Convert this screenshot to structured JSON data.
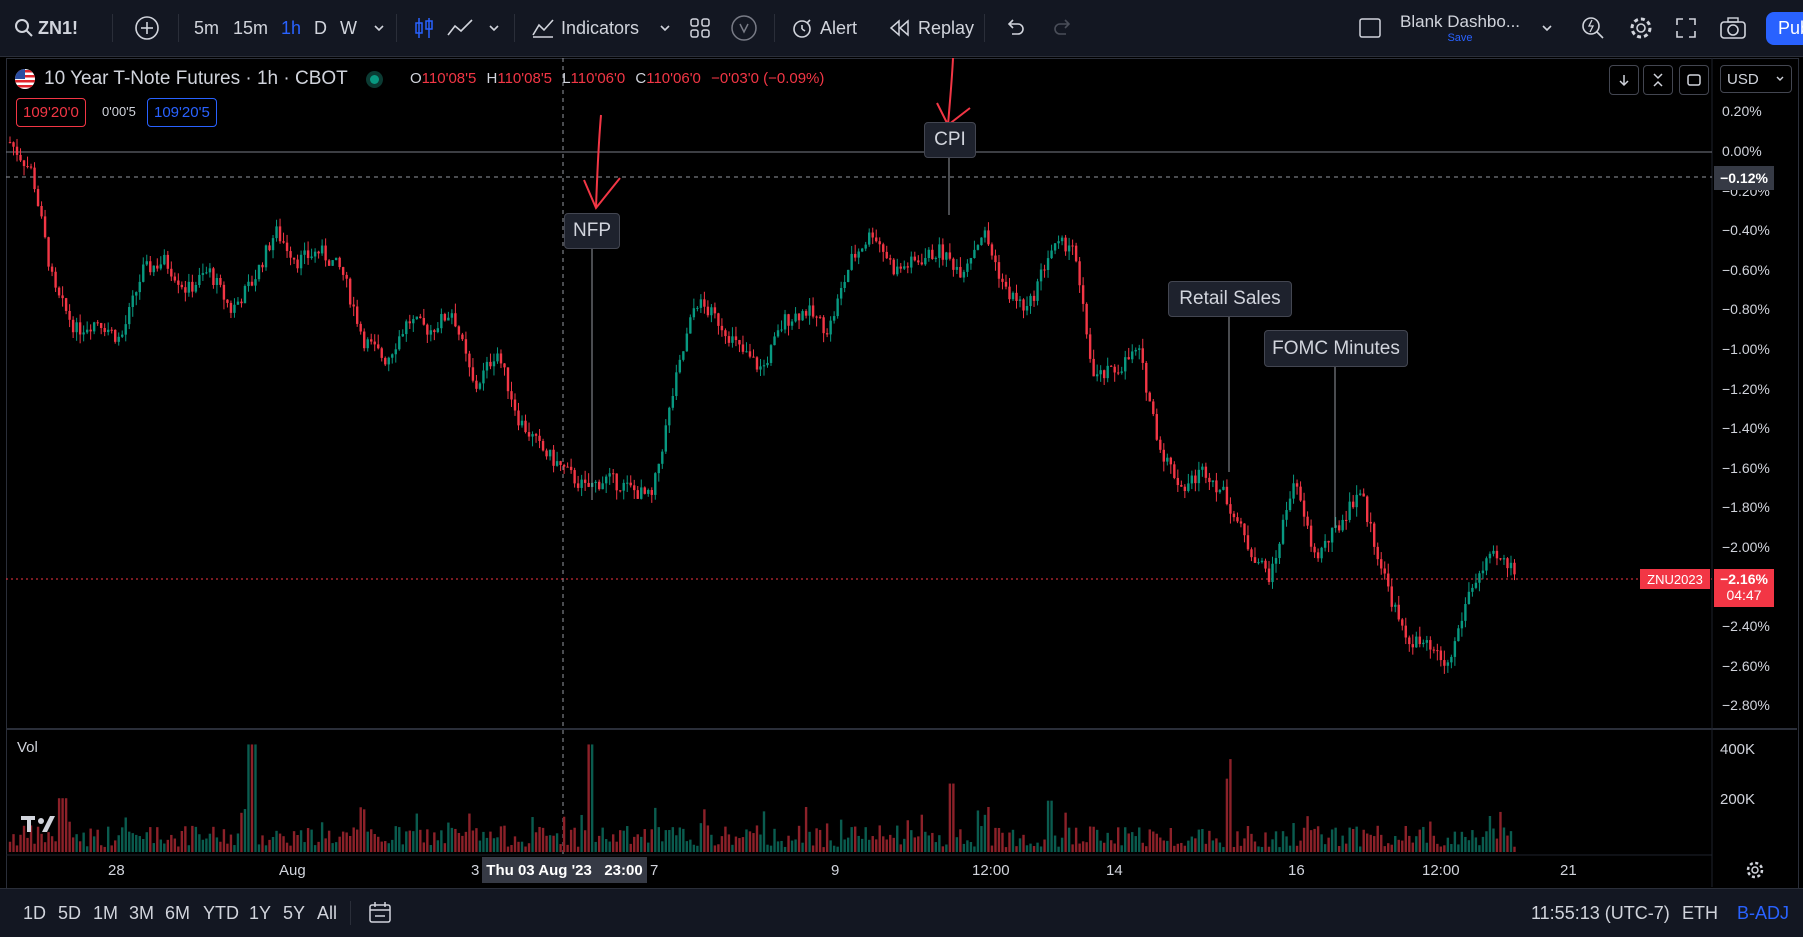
{
  "toolbar": {
    "symbol": "ZN1!",
    "intervals": [
      "5m",
      "15m",
      "1h",
      "D",
      "W"
    ],
    "active_interval": "1h",
    "indicators_label": "Indicators",
    "alert_label": "Alert",
    "replay_label": "Replay",
    "layout_name": "Blank Dashbo...",
    "save_label": "Save",
    "publish_label": "Pub"
  },
  "legend": {
    "title": "10 Year T-Note Futures · 1h · CBOT",
    "o_key": "O",
    "o_val": "110'08'5",
    "h_key": "H",
    "h_val": "110'08'5",
    "l_key": "L",
    "l_val": "110'06'0",
    "c_key": "C",
    "c_val": "110'06'0",
    "change": "−0'03'0 (−0.09%)",
    "sell_price": "109'20'0",
    "spread": "0'00'5",
    "buy_price": "109'20'5"
  },
  "controls": {
    "currency": "USD"
  },
  "events": {
    "nfp": "NFP",
    "cpi": "CPI",
    "retail": "Retail Sales",
    "fomc": "FOMC Minutes"
  },
  "price_axis": {
    "ticks": [
      "0.20%",
      "0.00%",
      "−0.20%",
      "−0.40%",
      "−0.60%",
      "−0.80%",
      "−1.00%",
      "−1.20%",
      "−1.40%",
      "−1.60%",
      "−1.80%",
      "−2.00%",
      "−2.40%",
      "−2.60%",
      "−2.80%"
    ],
    "crosshair_label": "−0.12%",
    "current_label": "−2.16%",
    "countdown": "04:47",
    "symbol_tag": "ZNU2023"
  },
  "volume": {
    "label": "Vol",
    "ticks": [
      "400K",
      "200K"
    ]
  },
  "time_axis": {
    "ticks": [
      "28",
      "Aug",
      "3",
      "7",
      "9",
      "12:00",
      "14",
      "16",
      "12:00",
      "21"
    ],
    "crosshair_label": "Thu 03 Aug '23   23:00"
  },
  "bottombar": {
    "ranges": [
      "1D",
      "5D",
      "1M",
      "3M",
      "6M",
      "YTD",
      "1Y",
      "5Y",
      "All"
    ],
    "clock": "11:55:13 (UTC-7)",
    "session": "ETH",
    "adjustment": "B-ADJ"
  },
  "chart_data": {
    "type": "candlestick",
    "symbol": "ZNU2023",
    "y_unit": "%",
    "ylim": [
      -2.9,
      0.25
    ],
    "volume_ylim": [
      0,
      450000
    ],
    "close_path_pct": [
      0.05,
      -0.1,
      -0.7,
      -0.9,
      -0.85,
      -0.95,
      -0.6,
      -0.55,
      -0.7,
      -0.6,
      -0.8,
      -0.65,
      -0.4,
      -0.55,
      -0.5,
      -0.6,
      -0.95,
      -1.05,
      -0.85,
      -0.9,
      -0.8,
      -1.2,
      -1.0,
      -1.35,
      -1.5,
      -1.6,
      -1.7,
      -1.65,
      -1.7,
      -1.75,
      -1.2,
      -0.75,
      -0.85,
      -1.0,
      -1.1,
      -0.85,
      -0.8,
      -0.9,
      -0.55,
      -0.4,
      -0.6,
      -0.55,
      -0.5,
      -0.6,
      -0.4,
      -0.7,
      -0.8,
      -0.5,
      -0.45,
      -1.15,
      -1.1,
      -1.0,
      -1.5,
      -1.7,
      -1.6,
      -1.75,
      -2.0,
      -2.15,
      -1.65,
      -2.05,
      -1.9,
      -1.7,
      -2.1,
      -2.45,
      -2.5,
      -2.6,
      -2.2,
      -2.05,
      -2.1
    ],
    "annotations": [
      {
        "label": "NFP",
        "date": "Thu 03 Aug '23 23:00"
      },
      {
        "label": "CPI"
      },
      {
        "label": "Retail Sales"
      },
      {
        "label": "FOMC Minutes"
      }
    ]
  }
}
